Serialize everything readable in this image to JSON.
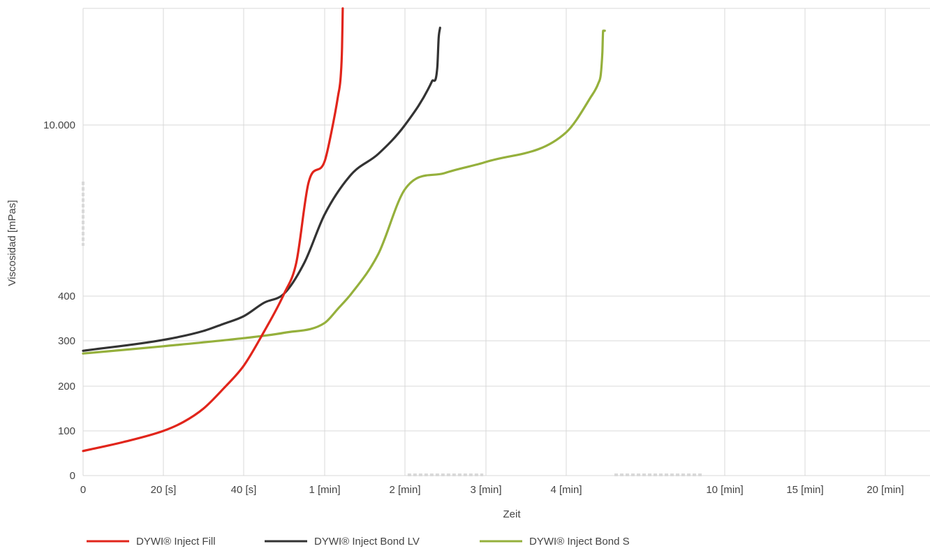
{
  "chart_data": {
    "type": "line",
    "title": "",
    "xlabel": "Zeit",
    "ylabel": "Viscosidad [mPas]",
    "grid": true,
    "legend_position": "bottom-left",
    "x_axis": {
      "scale": "piecewise (axis breaks after 2 [min] and after 4 [min])",
      "unit": "s",
      "ticks": [
        {
          "value": 0,
          "label": "0"
        },
        {
          "value": 20,
          "label": "20 [s]"
        },
        {
          "value": 40,
          "label": "40 [s]"
        },
        {
          "value": 60,
          "label": "1 [min]"
        },
        {
          "value": 120,
          "label": "2 [min]"
        },
        {
          "value": 180,
          "label": "3 [min]"
        },
        {
          "value": 240,
          "label": "4 [min]"
        },
        {
          "value": 600,
          "label": "10 [min]"
        },
        {
          "value": 900,
          "label": "15 [min]"
        },
        {
          "value": 1200,
          "label": "20 [min]"
        }
      ]
    },
    "y_axis": {
      "scale": "piecewise (axis break between 400 and 10.000)",
      "unit": "mPas",
      "ticks": [
        {
          "value": 0,
          "label": "0"
        },
        {
          "value": 100,
          "label": "100"
        },
        {
          "value": 200,
          "label": "200"
        },
        {
          "value": 300,
          "label": "300"
        },
        {
          "value": 400,
          "label": "400"
        },
        {
          "value": 10000,
          "label": "10000",
          "display": "10.000"
        }
      ]
    },
    "series": [
      {
        "name": "DYWI® Inject Fill",
        "color": "#e1251b",
        "points": [
          [
            0,
            55
          ],
          [
            10,
            75
          ],
          [
            20,
            100
          ],
          [
            25,
            120
          ],
          [
            30,
            150
          ],
          [
            35,
            195
          ],
          [
            40,
            245
          ],
          [
            45,
            320
          ],
          [
            50,
            430
          ],
          [
            53,
            800
          ],
          [
            56,
            2000
          ],
          [
            60,
            5000
          ],
          [
            65,
            9000
          ],
          [
            70,
            13000
          ],
          [
            72,
            15000
          ],
          [
            73,
            18000
          ],
          [
            73.5,
            22000
          ]
        ]
      },
      {
        "name": "DYWI® Inject Bond LV",
        "color": "#333333",
        "points": [
          [
            0,
            278
          ],
          [
            20,
            302
          ],
          [
            30,
            322
          ],
          [
            35,
            338
          ],
          [
            40,
            355
          ],
          [
            45,
            385
          ],
          [
            50,
            430
          ],
          [
            55,
            800
          ],
          [
            60,
            1500
          ],
          [
            80,
            3200
          ],
          [
            100,
            6000
          ],
          [
            120,
            10000
          ],
          [
            140,
            14500
          ],
          [
            144,
            16000
          ],
          [
            145,
            19000
          ],
          [
            146,
            20000
          ]
        ]
      },
      {
        "name": "DYWI® Inject Bond S",
        "color": "#95b03c",
        "points": [
          [
            0,
            272
          ],
          [
            20,
            288
          ],
          [
            40,
            306
          ],
          [
            50,
            318
          ],
          [
            60,
            340
          ],
          [
            70,
            372
          ],
          [
            80,
            430
          ],
          [
            100,
            900
          ],
          [
            120,
            1900
          ],
          [
            150,
            3400
          ],
          [
            180,
            4900
          ],
          [
            240,
            9000
          ],
          [
            270,
            12800
          ],
          [
            280,
            14300
          ],
          [
            283,
            15200
          ],
          [
            285,
            17500
          ],
          [
            286,
            19700
          ],
          [
            288,
            19700
          ]
        ]
      }
    ]
  },
  "legend": [
    {
      "label": "DYWI® Inject Fill",
      "color": "#e1251b"
    },
    {
      "label": "DYWI® Inject Bond LV",
      "color": "#333333"
    },
    {
      "label": "DYWI® Inject Bond S",
      "color": "#95b03c"
    }
  ]
}
